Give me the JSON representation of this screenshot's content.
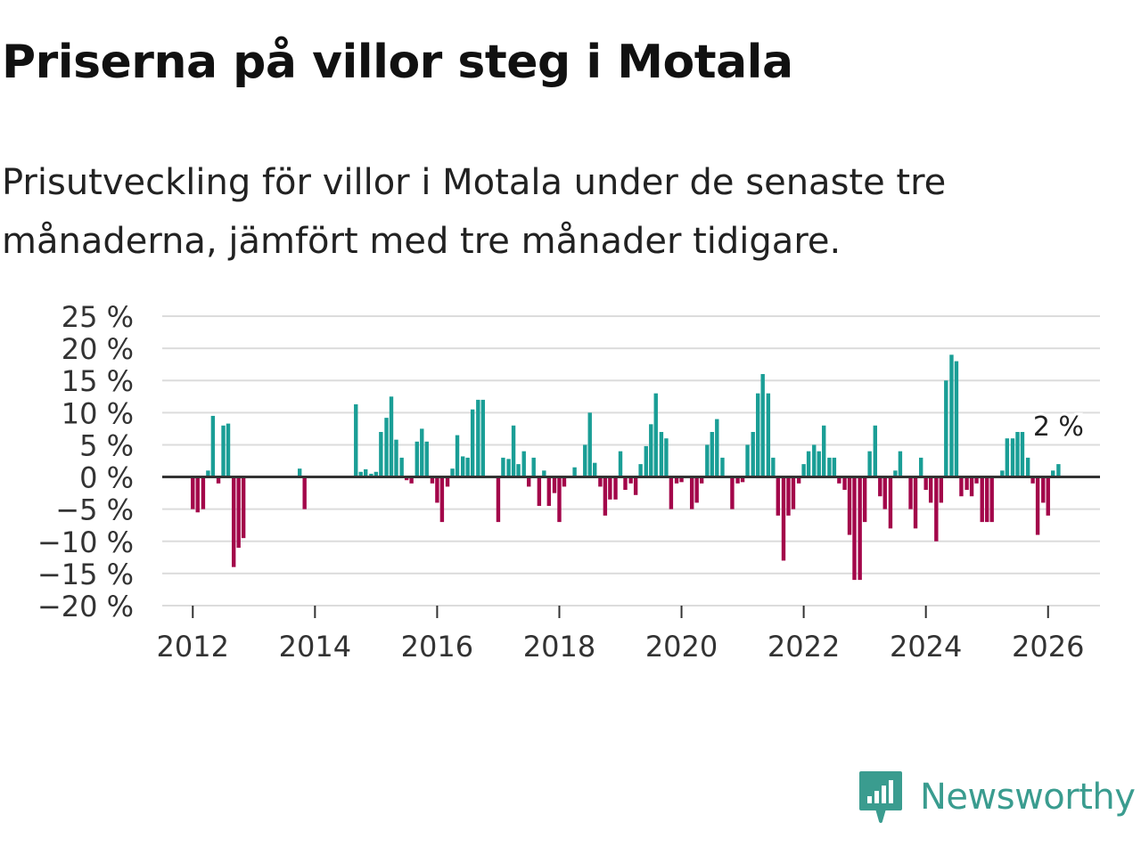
{
  "header": {
    "title": "Priserna på villor steg i Motala",
    "subtitle": "Prisutveckling för villor i Motala under de senaste tre månaderna, jämfört med tre månader tidigare."
  },
  "brand": {
    "name": "Newsworthy",
    "color": "#3a9c8f",
    "icon": "newsworthy-logo-icon"
  },
  "colors": {
    "positive": "#1a9e96",
    "negative": "#a3064a",
    "grid": "#dcdcdc",
    "zero_line": "#333333"
  },
  "chart_data": {
    "type": "bar",
    "title": "Priserna på villor steg i Motala",
    "xlabel": "",
    "ylabel": "",
    "ylim": [
      -20,
      25
    ],
    "yticks": [
      25,
      20,
      15,
      10,
      5,
      0,
      -5,
      -10,
      -15,
      -20
    ],
    "ytick_labels": [
      "25 %",
      "20 %",
      "15 %",
      "10 %",
      "5 %",
      "0 %",
      "−5 %",
      "−10 %",
      "−15 %",
      "−20 %"
    ],
    "xlim": [
      2011.5,
      2026.85
    ],
    "xticks": [
      2012,
      2014,
      2016,
      2018,
      2020,
      2022,
      2024,
      2026
    ],
    "xtick_labels": [
      "2012",
      "2014",
      "2016",
      "2018",
      "2020",
      "2022",
      "2024",
      "2026"
    ],
    "annotation": {
      "text": "2 %",
      "x": 2026.17,
      "value": 2
    },
    "series": [
      {
        "name": "Prisutveckling",
        "unit": "%",
        "points": [
          {
            "x": 2012.0,
            "v": -5
          },
          {
            "x": 2012.08,
            "v": -5.5
          },
          {
            "x": 2012.17,
            "v": -5
          },
          {
            "x": 2012.25,
            "v": 1
          },
          {
            "x": 2012.33,
            "v": 9.5
          },
          {
            "x": 2012.42,
            "v": -1
          },
          {
            "x": 2012.5,
            "v": 8
          },
          {
            "x": 2012.58,
            "v": 8.3
          },
          {
            "x": 2012.67,
            "v": -14
          },
          {
            "x": 2012.75,
            "v": -11
          },
          {
            "x": 2012.83,
            "v": -9.5
          },
          {
            "x": 2013.75,
            "v": 1.3
          },
          {
            "x": 2013.83,
            "v": -5
          },
          {
            "x": 2014.67,
            "v": 11.3
          },
          {
            "x": 2014.75,
            "v": 0.8
          },
          {
            "x": 2014.83,
            "v": 1.2
          },
          {
            "x": 2014.92,
            "v": 0.5
          },
          {
            "x": 2015.0,
            "v": 0.8
          },
          {
            "x": 2015.08,
            "v": 7
          },
          {
            "x": 2015.17,
            "v": 9.2
          },
          {
            "x": 2015.25,
            "v": 12.5
          },
          {
            "x": 2015.33,
            "v": 5.8
          },
          {
            "x": 2015.42,
            "v": 3
          },
          {
            "x": 2015.5,
            "v": -0.5
          },
          {
            "x": 2015.58,
            "v": -1
          },
          {
            "x": 2015.67,
            "v": 5.5
          },
          {
            "x": 2015.75,
            "v": 7.5
          },
          {
            "x": 2015.83,
            "v": 5.5
          },
          {
            "x": 2015.92,
            "v": -1
          },
          {
            "x": 2016.0,
            "v": -4
          },
          {
            "x": 2016.08,
            "v": -7
          },
          {
            "x": 2016.17,
            "v": -1.5
          },
          {
            "x": 2016.25,
            "v": 1.3
          },
          {
            "x": 2016.33,
            "v": 6.5
          },
          {
            "x": 2016.42,
            "v": 3.2
          },
          {
            "x": 2016.5,
            "v": 3
          },
          {
            "x": 2016.58,
            "v": 10.5
          },
          {
            "x": 2016.67,
            "v": 12
          },
          {
            "x": 2016.75,
            "v": 12
          },
          {
            "x": 2017.0,
            "v": -7
          },
          {
            "x": 2017.08,
            "v": 3
          },
          {
            "x": 2017.17,
            "v": 2.8
          },
          {
            "x": 2017.25,
            "v": 8
          },
          {
            "x": 2017.33,
            "v": 2
          },
          {
            "x": 2017.42,
            "v": 4
          },
          {
            "x": 2017.5,
            "v": -1.5
          },
          {
            "x": 2017.58,
            "v": 3
          },
          {
            "x": 2017.67,
            "v": -4.5
          },
          {
            "x": 2017.75,
            "v": 1
          },
          {
            "x": 2017.83,
            "v": -4.5
          },
          {
            "x": 2017.92,
            "v": -2.5
          },
          {
            "x": 2018.0,
            "v": -7
          },
          {
            "x": 2018.08,
            "v": -1.5
          },
          {
            "x": 2018.25,
            "v": 1.5
          },
          {
            "x": 2018.42,
            "v": 5
          },
          {
            "x": 2018.5,
            "v": 10
          },
          {
            "x": 2018.58,
            "v": 2.2
          },
          {
            "x": 2018.67,
            "v": -1.5
          },
          {
            "x": 2018.75,
            "v": -6
          },
          {
            "x": 2018.83,
            "v": -3.5
          },
          {
            "x": 2018.92,
            "v": -3.5
          },
          {
            "x": 2019.0,
            "v": 4
          },
          {
            "x": 2019.08,
            "v": -2
          },
          {
            "x": 2019.17,
            "v": -1
          },
          {
            "x": 2019.25,
            "v": -2.8
          },
          {
            "x": 2019.33,
            "v": 2
          },
          {
            "x": 2019.42,
            "v": 4.8
          },
          {
            "x": 2019.5,
            "v": 8.2
          },
          {
            "x": 2019.58,
            "v": 13
          },
          {
            "x": 2019.67,
            "v": 7
          },
          {
            "x": 2019.75,
            "v": 6
          },
          {
            "x": 2019.83,
            "v": -5
          },
          {
            "x": 2019.92,
            "v": -1
          },
          {
            "x": 2020.0,
            "v": -0.8
          },
          {
            "x": 2020.17,
            "v": -5
          },
          {
            "x": 2020.25,
            "v": -4
          },
          {
            "x": 2020.33,
            "v": -1
          },
          {
            "x": 2020.42,
            "v": 5
          },
          {
            "x": 2020.5,
            "v": 7
          },
          {
            "x": 2020.58,
            "v": 9
          },
          {
            "x": 2020.67,
            "v": 3
          },
          {
            "x": 2020.83,
            "v": -5
          },
          {
            "x": 2020.92,
            "v": -1
          },
          {
            "x": 2021.0,
            "v": -0.8
          },
          {
            "x": 2021.08,
            "v": 5
          },
          {
            "x": 2021.17,
            "v": 7
          },
          {
            "x": 2021.25,
            "v": 13
          },
          {
            "x": 2021.33,
            "v": 16
          },
          {
            "x": 2021.42,
            "v": 13
          },
          {
            "x": 2021.5,
            "v": 3
          },
          {
            "x": 2021.58,
            "v": -6
          },
          {
            "x": 2021.67,
            "v": -13
          },
          {
            "x": 2021.75,
            "v": -6
          },
          {
            "x": 2021.83,
            "v": -5
          },
          {
            "x": 2021.92,
            "v": -1
          },
          {
            "x": 2022.0,
            "v": 2
          },
          {
            "x": 2022.08,
            "v": 4
          },
          {
            "x": 2022.17,
            "v": 5
          },
          {
            "x": 2022.25,
            "v": 4
          },
          {
            "x": 2022.33,
            "v": 8
          },
          {
            "x": 2022.42,
            "v": 3
          },
          {
            "x": 2022.5,
            "v": 3
          },
          {
            "x": 2022.58,
            "v": -1
          },
          {
            "x": 2022.67,
            "v": -2
          },
          {
            "x": 2022.75,
            "v": -9
          },
          {
            "x": 2022.83,
            "v": -16
          },
          {
            "x": 2022.92,
            "v": -16
          },
          {
            "x": 2023.0,
            "v": -7
          },
          {
            "x": 2023.08,
            "v": 4
          },
          {
            "x": 2023.17,
            "v": 8
          },
          {
            "x": 2023.25,
            "v": -3
          },
          {
            "x": 2023.33,
            "v": -5
          },
          {
            "x": 2023.42,
            "v": -8
          },
          {
            "x": 2023.5,
            "v": 1
          },
          {
            "x": 2023.58,
            "v": 4
          },
          {
            "x": 2023.75,
            "v": -5
          },
          {
            "x": 2023.83,
            "v": -8
          },
          {
            "x": 2023.92,
            "v": 3
          },
          {
            "x": 2024.0,
            "v": -2
          },
          {
            "x": 2024.08,
            "v": -4
          },
          {
            "x": 2024.17,
            "v": -10
          },
          {
            "x": 2024.25,
            "v": -4
          },
          {
            "x": 2024.33,
            "v": 15
          },
          {
            "x": 2024.42,
            "v": 19
          },
          {
            "x": 2024.5,
            "v": 18
          },
          {
            "x": 2024.58,
            "v": -3
          },
          {
            "x": 2024.67,
            "v": -2
          },
          {
            "x": 2024.75,
            "v": -3
          },
          {
            "x": 2024.83,
            "v": -1
          },
          {
            "x": 2024.92,
            "v": -7
          },
          {
            "x": 2025.0,
            "v": -7
          },
          {
            "x": 2025.08,
            "v": -7
          },
          {
            "x": 2025.25,
            "v": 1
          },
          {
            "x": 2025.33,
            "v": 6
          },
          {
            "x": 2025.42,
            "v": 6
          },
          {
            "x": 2025.5,
            "v": 7
          },
          {
            "x": 2025.58,
            "v": 7
          },
          {
            "x": 2025.67,
            "v": 3
          },
          {
            "x": 2025.75,
            "v": -1
          },
          {
            "x": 2025.83,
            "v": -9
          },
          {
            "x": 2025.92,
            "v": -4
          },
          {
            "x": 2026.0,
            "v": -6
          },
          {
            "x": 2026.08,
            "v": 1
          },
          {
            "x": 2026.17,
            "v": 2
          }
        ]
      }
    ]
  }
}
